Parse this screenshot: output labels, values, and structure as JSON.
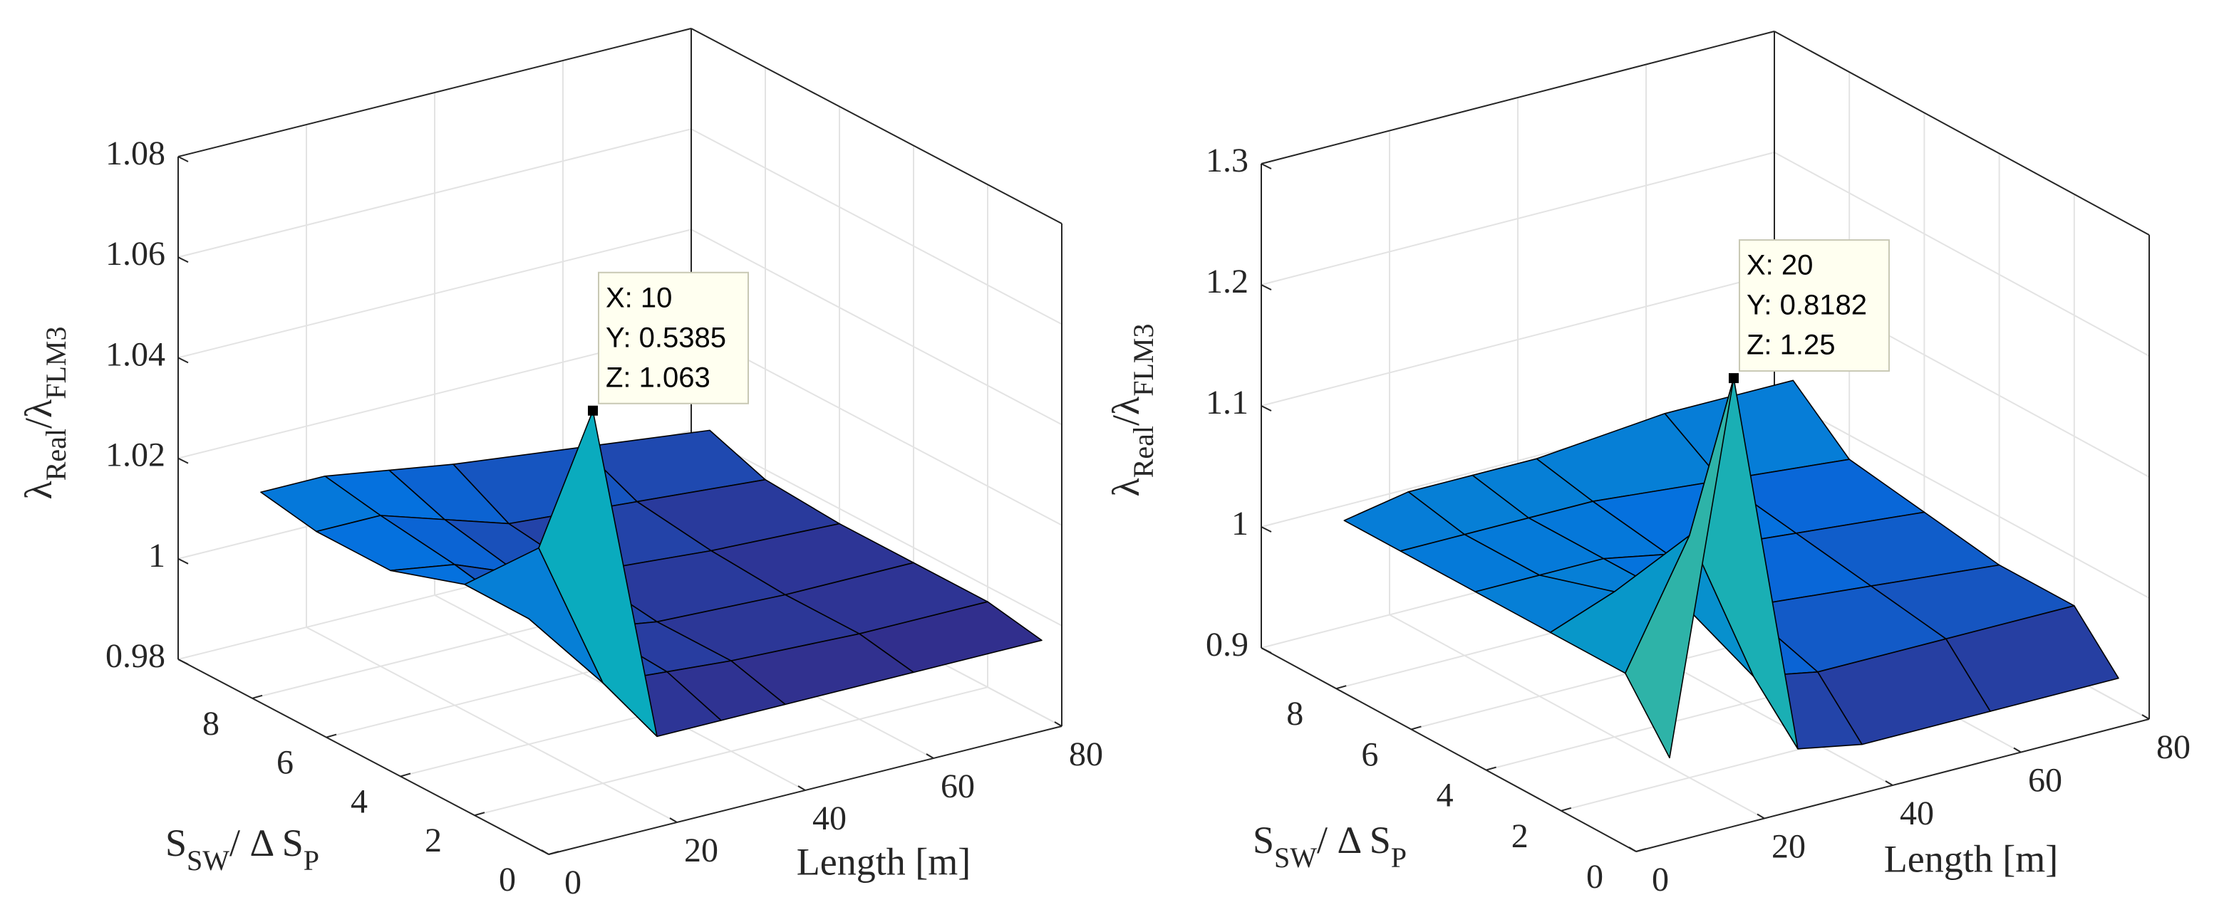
{
  "chart_data": [
    {
      "type": "surface",
      "x": [
        10,
        20,
        30,
        40,
        60,
        80
      ],
      "y": [
        0.5385,
        2,
        4,
        6,
        8,
        9.5
      ],
      "z": [
        [
          1.063,
          0.995,
          0.995,
          0.995,
          0.995,
          0.995
        ],
        [
          1.03,
          1.0,
          0.999,
          0.998,
          0.997,
          0.997
        ],
        [
          1.015,
          1.005,
          1.0,
          0.998,
          0.997,
          0.997
        ],
        [
          1.01,
          1.008,
          1.003,
          1.0,
          0.998,
          0.997
        ],
        [
          1.01,
          1.01,
          1.006,
          1.002,
          1.0,
          0.998
        ],
        [
          1.012,
          1.012,
          1.01,
          1.008,
          1.005,
          1.002
        ]
      ],
      "xlim": [
        0,
        80
      ],
      "xticks": [
        0,
        20,
        40,
        60,
        80
      ],
      "ylim": [
        0,
        10
      ],
      "yticks": [
        0,
        2,
        4,
        6,
        8
      ],
      "zlim": [
        0.98,
        1.08
      ],
      "zticks": [
        0.98,
        1,
        1.02,
        1.04,
        1.06,
        1.08
      ],
      "xlabel": "Length [m]",
      "ylabel": [
        {
          "text": "S"
        },
        {
          "text": "SW",
          "sub": true
        },
        {
          "text": "/ Δ S"
        },
        {
          "text": "P",
          "sub": true
        }
      ],
      "zlabel": [
        {
          "text": "λ"
        },
        {
          "text": "Real",
          "sub": true
        },
        {
          "text": "/λ"
        },
        {
          "text": "FLM3",
          "sub": true
        }
      ],
      "colormap": "parula",
      "grid": true,
      "datatip": {
        "x": 10,
        "y": 0.5385,
        "z": 1.063,
        "lines": [
          "X: 10",
          "Y: 0.5385",
          "Z: 1.063"
        ]
      }
    },
    {
      "type": "surface",
      "x": [
        10,
        20,
        30,
        40,
        60,
        80
      ],
      "y": [
        0.8182,
        2,
        4,
        6,
        8,
        9.5
      ],
      "z": [
        [
          0.95,
          1.25,
          0.93,
          0.92,
          0.92,
          0.92
        ],
        [
          1.0,
          1.1,
          0.97,
          0.96,
          0.96,
          0.96
        ],
        [
          1.0,
          1.02,
          1.0,
          0.98,
          0.97,
          0.96
        ],
        [
          1.0,
          1.0,
          1.0,
          0.99,
          0.98,
          0.97
        ],
        [
          1.0,
          1.0,
          1.0,
          1.0,
          0.99,
          0.98
        ],
        [
          1.0,
          1.01,
          1.01,
          1.01,
          1.02,
          1.02
        ]
      ],
      "xlim": [
        0,
        80
      ],
      "xticks": [
        0,
        20,
        40,
        60,
        80
      ],
      "ylim": [
        0,
        10
      ],
      "yticks": [
        0,
        2,
        4,
        6,
        8
      ],
      "zlim": [
        0.9,
        1.3
      ],
      "zticks": [
        0.9,
        1,
        1.1,
        1.2,
        1.3
      ],
      "xlabel": "Length [m]",
      "ylabel": [
        {
          "text": "S"
        },
        {
          "text": "SW",
          "sub": true
        },
        {
          "text": "/ Δ S"
        },
        {
          "text": "P",
          "sub": true
        }
      ],
      "zlabel": [
        {
          "text": "λ"
        },
        {
          "text": "Real",
          "sub": true
        },
        {
          "text": "/λ"
        },
        {
          "text": "FLM3",
          "sub": true
        }
      ],
      "colormap": "parula",
      "grid": true,
      "datatip": {
        "x": 20,
        "y": 0.8182,
        "z": 1.25,
        "lines": [
          "X: 20",
          "Y: 0.8182",
          "Z: 1.25"
        ]
      }
    }
  ]
}
